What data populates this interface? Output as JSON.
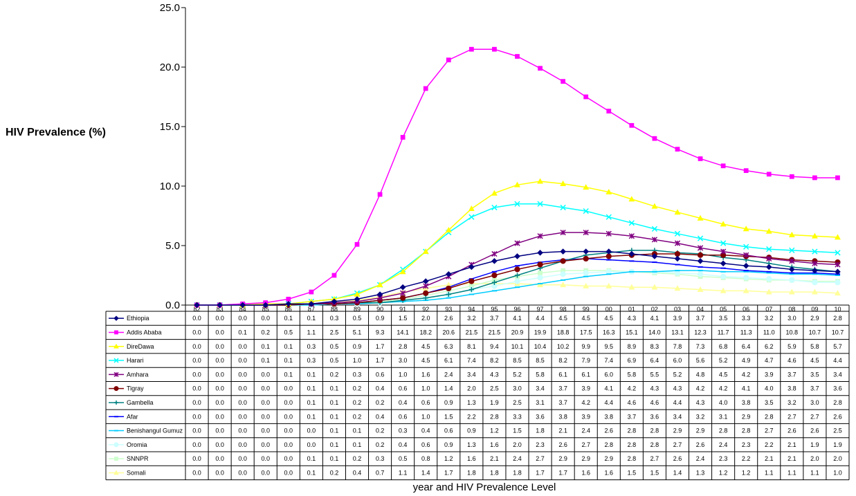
{
  "chart_data": {
    "type": "line",
    "title": "",
    "xlabel": "year and HIV Prevalence Level",
    "ylabel": "HIV Prevalence (%)",
    "ylim": [
      0,
      25
    ],
    "yticks": [
      "0.0",
      "5.0",
      "10.0",
      "15.0",
      "20.0",
      "25.0"
    ],
    "grid": false,
    "legend": "data-table",
    "categories": [
      "82",
      "83",
      "84",
      "85",
      "86",
      "87",
      "88",
      "89",
      "90",
      "91",
      "92",
      "93",
      "94",
      "95",
      "96",
      "97",
      "98",
      "99",
      "00",
      "01",
      "02",
      "03",
      "04",
      "05",
      "06",
      "07",
      "08",
      "09",
      "10"
    ],
    "series": [
      {
        "name": "Ethiopia",
        "color": "#000080",
        "marker": "diamond",
        "values": [
          0.0,
          0.0,
          0.0,
          0.0,
          0.1,
          0.1,
          0.3,
          0.5,
          0.9,
          1.5,
          2.0,
          2.6,
          3.2,
          3.7,
          4.1,
          4.4,
          4.5,
          4.5,
          4.5,
          4.3,
          4.1,
          3.9,
          3.7,
          3.5,
          3.3,
          3.2,
          3.0,
          2.9,
          2.8
        ]
      },
      {
        "name": "Addis Ababa",
        "color": "#FF00FF",
        "marker": "square",
        "values": [
          0.0,
          0.0,
          0.1,
          0.2,
          0.5,
          1.1,
          2.5,
          5.1,
          9.3,
          14.1,
          18.2,
          20.6,
          21.5,
          21.5,
          20.9,
          19.9,
          18.8,
          17.5,
          16.3,
          15.1,
          14.0,
          13.1,
          12.3,
          11.7,
          11.3,
          11.0,
          10.8,
          10.7,
          10.7
        ]
      },
      {
        "name": "DireDawa",
        "color": "#FFFF00",
        "marker": "triangle",
        "values": [
          0.0,
          0.0,
          0.0,
          0.1,
          0.1,
          0.3,
          0.5,
          0.9,
          1.7,
          2.8,
          4.5,
          6.3,
          8.1,
          9.4,
          10.1,
          10.4,
          10.2,
          9.9,
          9.5,
          8.9,
          8.3,
          7.8,
          7.3,
          6.8,
          6.4,
          6.2,
          5.9,
          5.8,
          5.7
        ]
      },
      {
        "name": "Harari",
        "color": "#00FFFF",
        "marker": "x",
        "values": [
          0.0,
          0.0,
          0.0,
          0.1,
          0.1,
          0.3,
          0.5,
          1.0,
          1.7,
          3.0,
          4.5,
          6.1,
          7.4,
          8.2,
          8.5,
          8.5,
          8.2,
          7.9,
          7.4,
          6.9,
          6.4,
          6.0,
          5.6,
          5.2,
          4.9,
          4.7,
          4.6,
          4.5,
          4.4
        ]
      },
      {
        "name": "Amhara",
        "color": "#800080",
        "marker": "star",
        "values": [
          0.0,
          0.0,
          0.0,
          0.0,
          0.1,
          0.1,
          0.2,
          0.3,
          0.6,
          1.0,
          1.6,
          2.4,
          3.4,
          4.3,
          5.2,
          5.8,
          6.1,
          6.1,
          6.0,
          5.8,
          5.5,
          5.2,
          4.8,
          4.5,
          4.2,
          3.9,
          3.7,
          3.5,
          3.4
        ]
      },
      {
        "name": "Tigray",
        "color": "#800000",
        "marker": "circle",
        "values": [
          0.0,
          0.0,
          0.0,
          0.0,
          0.0,
          0.1,
          0.1,
          0.2,
          0.4,
          0.6,
          1.0,
          1.4,
          2.0,
          2.5,
          3.0,
          3.4,
          3.7,
          3.9,
          4.1,
          4.2,
          4.3,
          4.3,
          4.2,
          4.2,
          4.1,
          4.0,
          3.8,
          3.7,
          3.6
        ]
      },
      {
        "name": "Gambella",
        "color": "#008080",
        "marker": "plus",
        "values": [
          0.0,
          0.0,
          0.0,
          0.0,
          0.0,
          0.1,
          0.1,
          0.2,
          0.2,
          0.4,
          0.6,
          0.9,
          1.3,
          1.9,
          2.5,
          3.1,
          3.7,
          4.2,
          4.4,
          4.6,
          4.6,
          4.4,
          4.3,
          4.0,
          3.8,
          3.5,
          3.2,
          3.0,
          2.8
        ]
      },
      {
        "name": "Afar",
        "color": "#0000FF",
        "marker": "dash",
        "values": [
          0.0,
          0.0,
          0.0,
          0.0,
          0.0,
          0.1,
          0.1,
          0.2,
          0.4,
          0.6,
          1.0,
          1.5,
          2.2,
          2.8,
          3.3,
          3.6,
          3.8,
          3.9,
          3.8,
          3.7,
          3.6,
          3.4,
          3.2,
          3.1,
          2.9,
          2.8,
          2.7,
          2.7,
          2.6
        ]
      },
      {
        "name": "Benishangul Gumuz",
        "color": "#00CCFF",
        "marker": "dash",
        "values": [
          0.0,
          0.0,
          0.0,
          0.0,
          0.0,
          0.0,
          0.1,
          0.1,
          0.2,
          0.3,
          0.4,
          0.6,
          0.9,
          1.2,
          1.5,
          1.8,
          2.1,
          2.4,
          2.6,
          2.8,
          2.8,
          2.9,
          2.9,
          2.8,
          2.8,
          2.7,
          2.6,
          2.6,
          2.5
        ]
      },
      {
        "name": "Oromia",
        "color": "#CCFFFF",
        "marker": "circle",
        "values": [
          0.0,
          0.0,
          0.0,
          0.0,
          0.0,
          0.0,
          0.1,
          0.1,
          0.2,
          0.4,
          0.6,
          0.9,
          1.3,
          1.6,
          2.0,
          2.3,
          2.6,
          2.7,
          2.8,
          2.8,
          2.8,
          2.7,
          2.6,
          2.4,
          2.3,
          2.2,
          2.1,
          1.9,
          1.9
        ]
      },
      {
        "name": "SNNPR",
        "color": "#CCFFCC",
        "marker": "square",
        "values": [
          0.0,
          0.0,
          0.0,
          0.0,
          0.0,
          0.1,
          0.1,
          0.2,
          0.3,
          0.5,
          0.8,
          1.2,
          1.6,
          2.1,
          2.4,
          2.7,
          2.9,
          2.9,
          2.9,
          2.8,
          2.7,
          2.6,
          2.4,
          2.3,
          2.2,
          2.1,
          2.1,
          2.0,
          2.0
        ]
      },
      {
        "name": "Somali",
        "color": "#FFFF99",
        "marker": "triangle",
        "values": [
          0.0,
          0.0,
          0.0,
          0.0,
          0.0,
          0.1,
          0.2,
          0.4,
          0.7,
          1.1,
          1.4,
          1.7,
          1.8,
          1.8,
          1.8,
          1.7,
          1.7,
          1.6,
          1.6,
          1.5,
          1.5,
          1.4,
          1.3,
          1.2,
          1.2,
          1.1,
          1.1,
          1.1,
          1.0
        ]
      }
    ]
  }
}
